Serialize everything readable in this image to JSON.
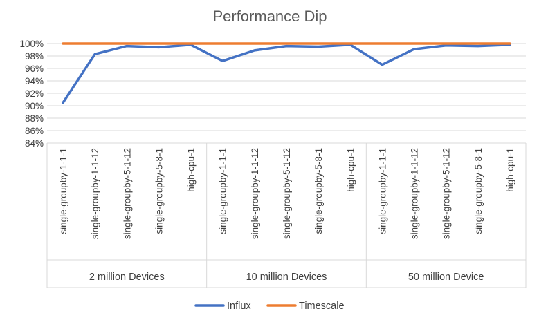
{
  "chart_data": {
    "type": "line",
    "title": "Performance Dip",
    "xlabel": "",
    "ylabel": "",
    "ylim": [
      84,
      100
    ],
    "yticks": [
      84,
      86,
      88,
      90,
      92,
      94,
      96,
      98,
      100
    ],
    "ytick_labels": [
      "84%",
      "86%",
      "88%",
      "90%",
      "92%",
      "94%",
      "96%",
      "98%",
      "100%"
    ],
    "grid": true,
    "legend": "bottom",
    "groups": [
      {
        "label": "2 million Devices",
        "categories": [
          "single-groupby-1-1-1",
          "single-groupby-1-1-12",
          "single-groupby-5-1-12",
          "single-groupby-5-8-1",
          "high-cpu-1"
        ]
      },
      {
        "label": "10 million Devices",
        "categories": [
          "single-groupby-1-1-1",
          "single-groupby-1-1-12",
          "single-groupby-5-1-12",
          "single-groupby-5-8-1",
          "high-cpu-1"
        ]
      },
      {
        "label": "50 million Device",
        "categories": [
          "single-groupby-1-1-1",
          "single-groupby-1-1-12",
          "single-groupby-5-1-12",
          "single-groupby-5-8-1",
          "high-cpu-1"
        ]
      }
    ],
    "series": [
      {
        "name": "Influx",
        "color": "#4472c4",
        "values": [
          90.5,
          98.3,
          99.6,
          99.4,
          99.8,
          97.2,
          98.9,
          99.6,
          99.5,
          99.8,
          96.6,
          99.1,
          99.7,
          99.6,
          99.8
        ]
      },
      {
        "name": "Timescale",
        "color": "#ed7d31",
        "values": [
          100,
          100,
          100,
          100,
          100,
          100,
          100,
          100,
          100,
          100,
          100,
          100,
          100,
          100,
          100
        ]
      }
    ]
  }
}
